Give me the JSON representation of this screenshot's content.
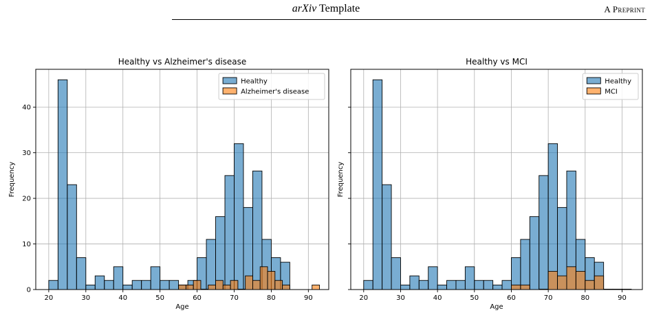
{
  "header": {
    "title_italic": "arXiv",
    "title_rest": "Template",
    "right_label": "A Preprint"
  },
  "colors": {
    "healthy": "#1f77b4",
    "disease": "#ff7f0e",
    "grid": "#b0b0b0"
  },
  "chart_data": [
    {
      "type": "bar",
      "title": "Healthy vs Alzheimer's disease",
      "xlabel": "Age",
      "ylabel": "Frequency",
      "xlim": [
        16.5,
        95.5
      ],
      "ylim": [
        0,
        48.3
      ],
      "xticks": [
        20,
        30,
        40,
        50,
        60,
        70,
        80,
        90
      ],
      "yticks": [
        0,
        10,
        20,
        30,
        40
      ],
      "grid": true,
      "legend_position": "top-right",
      "bin_edges": [
        20,
        22.5,
        25,
        27.5,
        30,
        32.5,
        35,
        37.5,
        40,
        42.5,
        45,
        47.5,
        50,
        52.5,
        55,
        57.5,
        60,
        62.5,
        65,
        67.5,
        70,
        72.5,
        75,
        77.5,
        80,
        82.5,
        85
      ],
      "series": [
        {
          "name": "Healthy",
          "color": "#1f77b4",
          "values": [
            2,
            46,
            23,
            7,
            1,
            3,
            2,
            5,
            1,
            2,
            2,
            5,
            2,
            2,
            1,
            2,
            7,
            11,
            16,
            25,
            32,
            18,
            26,
            11,
            7,
            6,
            3
          ]
        },
        {
          "name": "Alzheimer's disease",
          "color": "#ff7f0e",
          "bins": [
            [
              55,
              57,
              1
            ],
            [
              57,
              59,
              1
            ],
            [
              59,
              61,
              2
            ],
            [
              61,
              63,
              0
            ],
            [
              63,
              65,
              1
            ],
            [
              65,
              67,
              2
            ],
            [
              67,
              69,
              1
            ],
            [
              69,
              71,
              2
            ],
            [
              71,
              73,
              0
            ],
            [
              73,
              75,
              3
            ],
            [
              75,
              77,
              2
            ],
            [
              77,
              79,
              5
            ],
            [
              79,
              81,
              4
            ],
            [
              81,
              83,
              2
            ],
            [
              83,
              85,
              1
            ],
            [
              91,
              93,
              1
            ]
          ]
        }
      ]
    },
    {
      "type": "bar",
      "title": "Healthy vs MCI",
      "xlabel": "Age",
      "ylabel": "Frequency",
      "xlim": [
        16.5,
        95.5
      ],
      "ylim": [
        0,
        48.3
      ],
      "xticks": [
        20,
        30,
        40,
        50,
        60,
        70,
        80,
        90
      ],
      "yticks": [
        0,
        10,
        20,
        30,
        40
      ],
      "grid": true,
      "legend_position": "top-right",
      "bin_edges": [
        20,
        22.5,
        25,
        27.5,
        30,
        32.5,
        35,
        37.5,
        40,
        42.5,
        45,
        47.5,
        50,
        52.5,
        55,
        57.5,
        60,
        62.5,
        65,
        67.5,
        70,
        72.5,
        75,
        77.5,
        80,
        82.5,
        85
      ],
      "series": [
        {
          "name": "Healthy",
          "color": "#1f77b4",
          "values": [
            2,
            46,
            23,
            7,
            1,
            3,
            2,
            5,
            1,
            2,
            2,
            5,
            2,
            2,
            1,
            2,
            7,
            11,
            16,
            25,
            32,
            18,
            26,
            11,
            7,
            6,
            3
          ]
        },
        {
          "name": "MCI",
          "color": "#ff7f0e",
          "bins": [
            [
              60,
              62.5,
              1
            ],
            [
              62.5,
              65,
              1
            ],
            [
              67.5,
              70,
              0
            ],
            [
              70,
              72.5,
              4
            ],
            [
              72.5,
              75,
              3
            ],
            [
              75,
              77.5,
              5
            ],
            [
              77.5,
              80,
              4
            ],
            [
              80,
              82.5,
              2
            ],
            [
              82.5,
              85,
              3
            ],
            [
              85,
              87.5,
              0
            ],
            [
              87.5,
              90,
              0
            ],
            [
              90,
              92.5,
              0
            ]
          ]
        }
      ]
    }
  ]
}
